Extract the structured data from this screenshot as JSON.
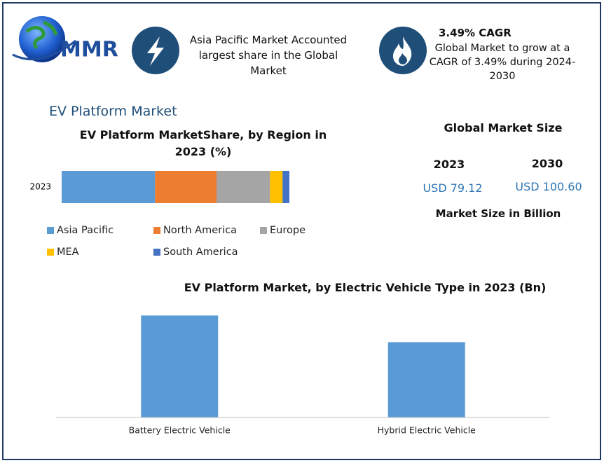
{
  "header": {
    "logo": "MMR",
    "highlight_lines": [
      "Asia Pacific Market Accounted",
      "largest share in the Global",
      "Market"
    ],
    "cagr_title": "3.49% CAGR",
    "cagr_text": "Global Market to grow at a CAGR of 3.49% during 2024-2030"
  },
  "page_title": "EV Platform Market",
  "market_size": {
    "title": "Global Market Size",
    "years": [
      "2023",
      "2030"
    ],
    "amounts": [
      "USD 79.12",
      "USD 100.60"
    ],
    "note": "Market Size in Billion"
  },
  "chart_data": [
    {
      "type": "stacked_bar",
      "title": "EV Platform MarketShare, by Region in 2023 (%)",
      "categories": [
        "2023"
      ],
      "xlim": [
        0,
        100
      ],
      "series": [
        {
          "name": "Asia Pacific",
          "color": "#5b9bd5",
          "values": [
            41
          ]
        },
        {
          "name": "North America",
          "color": "#ed7d31",
          "values": [
            27
          ]
        },
        {
          "name": "Europe",
          "color": "#a5a5a5",
          "values": [
            23.5
          ]
        },
        {
          "name": "MEA",
          "color": "#ffc000",
          "values": [
            5.5
          ]
        },
        {
          "name": "South America",
          "color": "#4472c4",
          "values": [
            3
          ]
        }
      ]
    },
    {
      "type": "bar",
      "title": "EV Platform Market, by Electric Vehicle Type in 2023 (Bn)",
      "categories": [
        "Battery Electric Vehicle",
        "Hybrid Electric Vehicle"
      ],
      "values": [
        45.5,
        33.6
      ],
      "color": "#5b9bd5",
      "ylim": [
        0,
        50
      ]
    }
  ]
}
